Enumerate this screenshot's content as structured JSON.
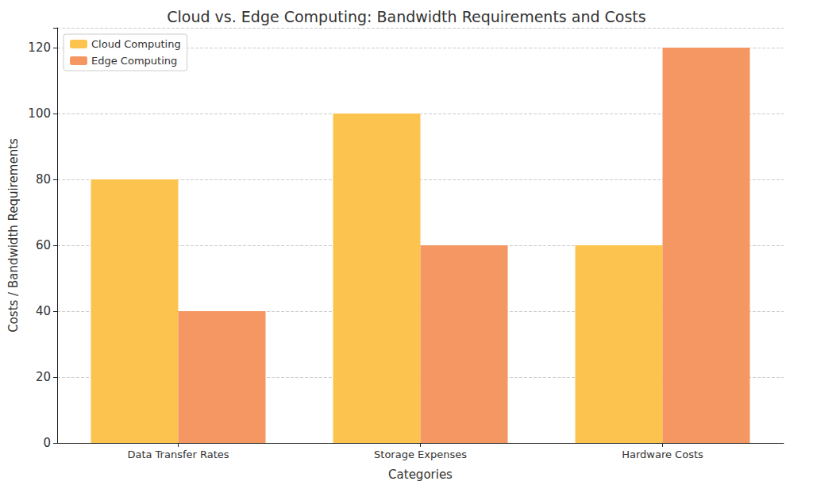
{
  "chart_data": {
    "type": "bar",
    "title": "Cloud vs. Edge Computing: Bandwidth Requirements and Costs",
    "x_label": "Categories",
    "y_label": "Costs / Bandwidth Requirements",
    "categories": [
      "Data Transfer Rates",
      "Storage Expenses",
      "Hardware Costs"
    ],
    "series": [
      {
        "name": "Cloud Computing",
        "color": "#fcc44f",
        "values": [
          80,
          100,
          60
        ]
      },
      {
        "name": "Edge Computing",
        "color": "#f49762",
        "values": [
          40,
          60,
          120
        ]
      }
    ],
    "ylim": [
      0,
      126
    ],
    "yticks": [
      0,
      20,
      40,
      60,
      80,
      100,
      120
    ],
    "grid": true,
    "legend": "upper left"
  }
}
